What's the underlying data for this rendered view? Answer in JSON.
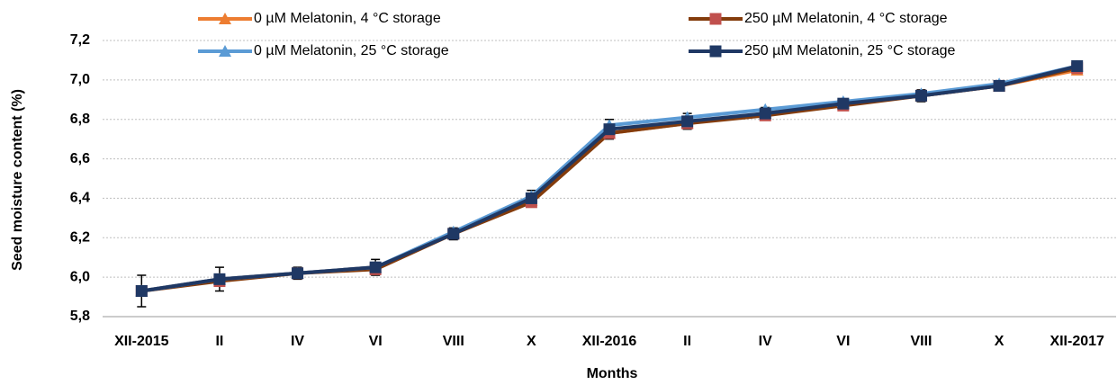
{
  "chart_data": {
    "type": "line",
    "y_label": "Seed moisture content (%)",
    "x_label": "Months",
    "categories": [
      "XII-2015",
      "II",
      "IV",
      "VI",
      "VIII",
      "X",
      "XII-2016",
      "II",
      "IV",
      "VI",
      "VIII",
      "X",
      "XII-2017"
    ],
    "series": [
      {
        "name": "0 µM Melatonin, 4 °C storage",
        "color": "#ED7D31",
        "marker_color": "#ED7D31",
        "marker": "triangle",
        "values": [
          5.93,
          5.99,
          6.02,
          6.05,
          6.22,
          6.39,
          6.73,
          6.78,
          6.83,
          6.88,
          6.92,
          6.97,
          7.05
        ]
      },
      {
        "name": "250 µM Melatonin, 4 °C storage",
        "color": "#843C0C",
        "marker_color": "#C0504D",
        "marker": "square",
        "values": [
          5.93,
          5.98,
          6.02,
          6.04,
          6.22,
          6.38,
          6.73,
          6.78,
          6.82,
          6.87,
          6.92,
          6.97,
          7.06
        ]
      },
      {
        "name": "0 µM Melatonin, 25 °C storage",
        "color": "#5B9BD5",
        "marker_color": "#5B9BD5",
        "marker": "triangle",
        "values": [
          5.93,
          5.99,
          6.02,
          6.05,
          6.23,
          6.41,
          6.77,
          6.81,
          6.85,
          6.89,
          6.93,
          6.98,
          7.07
        ]
      },
      {
        "name": "250 µM Melatonin, 25 °C storage",
        "color": "#1F3864",
        "marker_color": "#1F3864",
        "marker": "square",
        "values": [
          5.93,
          5.99,
          6.02,
          6.05,
          6.22,
          6.4,
          6.75,
          6.79,
          6.83,
          6.88,
          6.92,
          6.97,
          7.07
        ],
        "errors": [
          0.08,
          0.06,
          0.03,
          0.04,
          0.03,
          0.04,
          0.05,
          0.04,
          0.03,
          0.02,
          0.03,
          0.02,
          0.02
        ]
      }
    ],
    "ylim": [
      5.8,
      7.2
    ],
    "yticks": [
      {
        "value": 5.8,
        "label": "5,8"
      },
      {
        "value": 6.0,
        "label": "6,0"
      },
      {
        "value": 6.2,
        "label": "6,2"
      },
      {
        "value": 6.4,
        "label": "6,4"
      },
      {
        "value": 6.6,
        "label": "6,6"
      },
      {
        "value": 6.8,
        "label": "6,8"
      },
      {
        "value": 7.0,
        "label": "7,0"
      },
      {
        "value": 7.2,
        "label": "7,2"
      }
    ],
    "grid": true
  }
}
